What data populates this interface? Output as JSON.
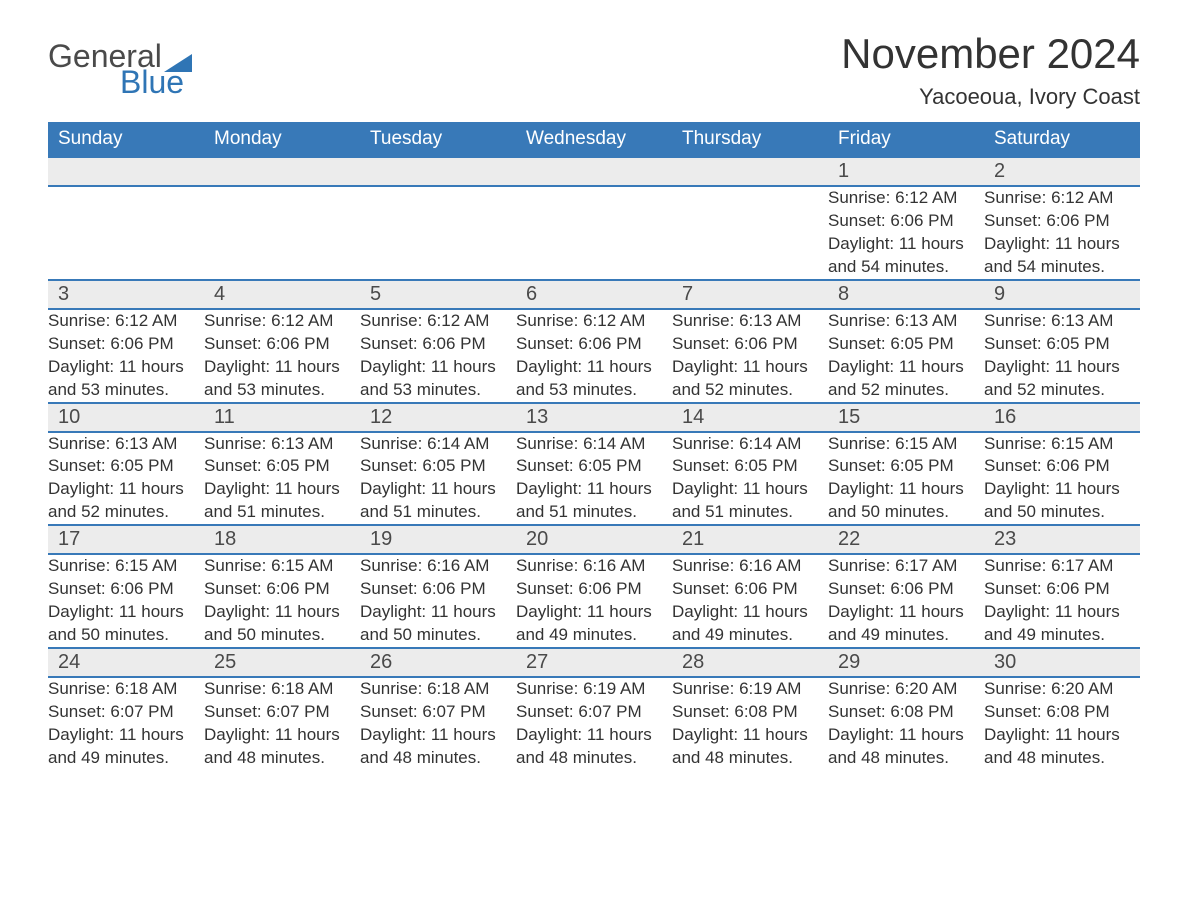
{
  "logo": {
    "text1": "General",
    "text2": "Blue",
    "triangle_color": "#2f75b5"
  },
  "title": "November 2024",
  "subtitle": "Yacoeoua, Ivory Coast",
  "colors": {
    "header_bg": "#3879b8",
    "header_text": "#ffffff",
    "daynum_bg": "#ececec",
    "row_border": "#3879b8",
    "body_text": "#333333",
    "logo_gray": "#4a4a4a",
    "logo_blue": "#2f75b5"
  },
  "columns": [
    "Sunday",
    "Monday",
    "Tuesday",
    "Wednesday",
    "Thursday",
    "Friday",
    "Saturday"
  ],
  "weeks": [
    [
      null,
      null,
      null,
      null,
      null,
      {
        "n": "1",
        "sr": "Sunrise: 6:12 AM",
        "ss": "Sunset: 6:06 PM",
        "dl": "Daylight: 11 hours and 54 minutes."
      },
      {
        "n": "2",
        "sr": "Sunrise: 6:12 AM",
        "ss": "Sunset: 6:06 PM",
        "dl": "Daylight: 11 hours and 54 minutes."
      }
    ],
    [
      {
        "n": "3",
        "sr": "Sunrise: 6:12 AM",
        "ss": "Sunset: 6:06 PM",
        "dl": "Daylight: 11 hours and 53 minutes."
      },
      {
        "n": "4",
        "sr": "Sunrise: 6:12 AM",
        "ss": "Sunset: 6:06 PM",
        "dl": "Daylight: 11 hours and 53 minutes."
      },
      {
        "n": "5",
        "sr": "Sunrise: 6:12 AM",
        "ss": "Sunset: 6:06 PM",
        "dl": "Daylight: 11 hours and 53 minutes."
      },
      {
        "n": "6",
        "sr": "Sunrise: 6:12 AM",
        "ss": "Sunset: 6:06 PM",
        "dl": "Daylight: 11 hours and 53 minutes."
      },
      {
        "n": "7",
        "sr": "Sunrise: 6:13 AM",
        "ss": "Sunset: 6:06 PM",
        "dl": "Daylight: 11 hours and 52 minutes."
      },
      {
        "n": "8",
        "sr": "Sunrise: 6:13 AM",
        "ss": "Sunset: 6:05 PM",
        "dl": "Daylight: 11 hours and 52 minutes."
      },
      {
        "n": "9",
        "sr": "Sunrise: 6:13 AM",
        "ss": "Sunset: 6:05 PM",
        "dl": "Daylight: 11 hours and 52 minutes."
      }
    ],
    [
      {
        "n": "10",
        "sr": "Sunrise: 6:13 AM",
        "ss": "Sunset: 6:05 PM",
        "dl": "Daylight: 11 hours and 52 minutes."
      },
      {
        "n": "11",
        "sr": "Sunrise: 6:13 AM",
        "ss": "Sunset: 6:05 PM",
        "dl": "Daylight: 11 hours and 51 minutes."
      },
      {
        "n": "12",
        "sr": "Sunrise: 6:14 AM",
        "ss": "Sunset: 6:05 PM",
        "dl": "Daylight: 11 hours and 51 minutes."
      },
      {
        "n": "13",
        "sr": "Sunrise: 6:14 AM",
        "ss": "Sunset: 6:05 PM",
        "dl": "Daylight: 11 hours and 51 minutes."
      },
      {
        "n": "14",
        "sr": "Sunrise: 6:14 AM",
        "ss": "Sunset: 6:05 PM",
        "dl": "Daylight: 11 hours and 51 minutes."
      },
      {
        "n": "15",
        "sr": "Sunrise: 6:15 AM",
        "ss": "Sunset: 6:05 PM",
        "dl": "Daylight: 11 hours and 50 minutes."
      },
      {
        "n": "16",
        "sr": "Sunrise: 6:15 AM",
        "ss": "Sunset: 6:06 PM",
        "dl": "Daylight: 11 hours and 50 minutes."
      }
    ],
    [
      {
        "n": "17",
        "sr": "Sunrise: 6:15 AM",
        "ss": "Sunset: 6:06 PM",
        "dl": "Daylight: 11 hours and 50 minutes."
      },
      {
        "n": "18",
        "sr": "Sunrise: 6:15 AM",
        "ss": "Sunset: 6:06 PM",
        "dl": "Daylight: 11 hours and 50 minutes."
      },
      {
        "n": "19",
        "sr": "Sunrise: 6:16 AM",
        "ss": "Sunset: 6:06 PM",
        "dl": "Daylight: 11 hours and 50 minutes."
      },
      {
        "n": "20",
        "sr": "Sunrise: 6:16 AM",
        "ss": "Sunset: 6:06 PM",
        "dl": "Daylight: 11 hours and 49 minutes."
      },
      {
        "n": "21",
        "sr": "Sunrise: 6:16 AM",
        "ss": "Sunset: 6:06 PM",
        "dl": "Daylight: 11 hours and 49 minutes."
      },
      {
        "n": "22",
        "sr": "Sunrise: 6:17 AM",
        "ss": "Sunset: 6:06 PM",
        "dl": "Daylight: 11 hours and 49 minutes."
      },
      {
        "n": "23",
        "sr": "Sunrise: 6:17 AM",
        "ss": "Sunset: 6:06 PM",
        "dl": "Daylight: 11 hours and 49 minutes."
      }
    ],
    [
      {
        "n": "24",
        "sr": "Sunrise: 6:18 AM",
        "ss": "Sunset: 6:07 PM",
        "dl": "Daylight: 11 hours and 49 minutes."
      },
      {
        "n": "25",
        "sr": "Sunrise: 6:18 AM",
        "ss": "Sunset: 6:07 PM",
        "dl": "Daylight: 11 hours and 48 minutes."
      },
      {
        "n": "26",
        "sr": "Sunrise: 6:18 AM",
        "ss": "Sunset: 6:07 PM",
        "dl": "Daylight: 11 hours and 48 minutes."
      },
      {
        "n": "27",
        "sr": "Sunrise: 6:19 AM",
        "ss": "Sunset: 6:07 PM",
        "dl": "Daylight: 11 hours and 48 minutes."
      },
      {
        "n": "28",
        "sr": "Sunrise: 6:19 AM",
        "ss": "Sunset: 6:08 PM",
        "dl": "Daylight: 11 hours and 48 minutes."
      },
      {
        "n": "29",
        "sr": "Sunrise: 6:20 AM",
        "ss": "Sunset: 6:08 PM",
        "dl": "Daylight: 11 hours and 48 minutes."
      },
      {
        "n": "30",
        "sr": "Sunrise: 6:20 AM",
        "ss": "Sunset: 6:08 PM",
        "dl": "Daylight: 11 hours and 48 minutes."
      }
    ]
  ]
}
